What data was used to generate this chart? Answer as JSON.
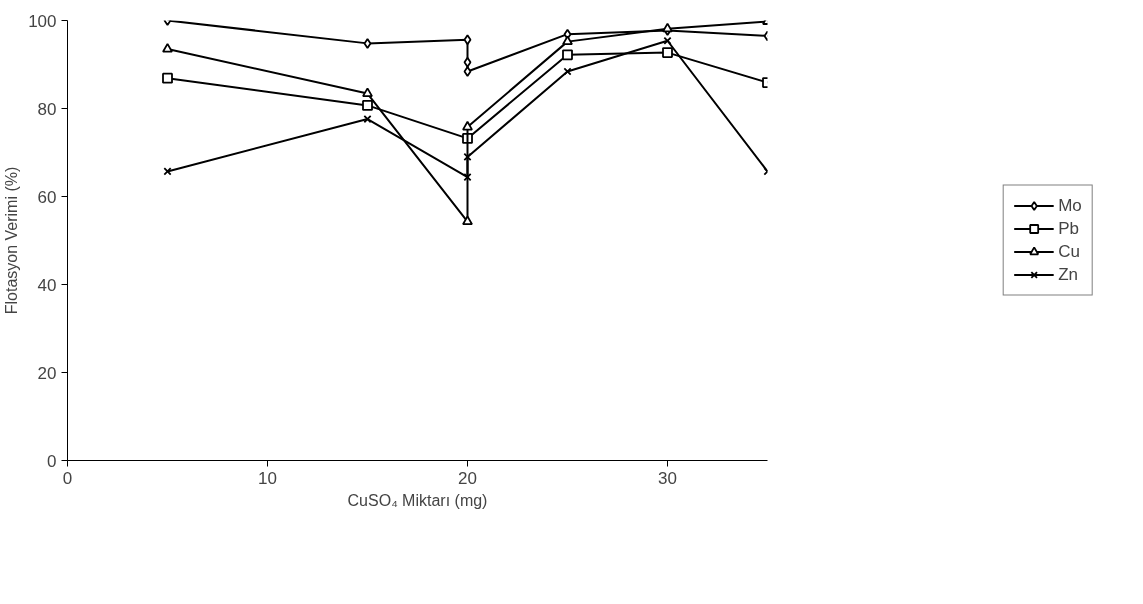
{
  "chart_data": {
    "type": "line",
    "xlabel": "CuSO₄ Miktarı (mg)",
    "ylabel": "Flotasyon Verimi (%)",
    "xlim": [
      0,
      35
    ],
    "xticks": [
      0,
      10,
      20,
      30
    ],
    "ylim": [
      0,
      100
    ],
    "yticks": [
      0,
      20,
      40,
      60,
      80,
      100
    ],
    "grid": false,
    "legend": "right",
    "line_style": "solid",
    "series": [
      {
        "name": "Mo",
        "color": "#000000",
        "marker": "diamond",
        "x": [
          5,
          15,
          20,
          20,
          20,
          25,
          30,
          35
        ],
        "values": [
          100,
          94.8,
          95.6,
          90.5,
          88.4,
          96.9,
          97.7,
          96.5
        ]
      },
      {
        "name": "Pb",
        "color": "#000000",
        "marker": "square",
        "x": [
          5,
          15,
          20,
          25,
          30,
          35
        ],
        "values": [
          86.9,
          80.7,
          73.2,
          92.2,
          92.7,
          85.9
        ]
      },
      {
        "name": "Cu",
        "color": "#000000",
        "marker": "triangle",
        "x": [
          5,
          15,
          20,
          20,
          25,
          30,
          35
        ],
        "values": [
          93.5,
          83.4,
          54.3,
          75.8,
          95.2,
          98.1,
          99.8
        ]
      },
      {
        "name": "Zn",
        "color": "#000000",
        "marker": "cross",
        "x": [
          5,
          15,
          20,
          20,
          25,
          30,
          35
        ],
        "values": [
          65.7,
          77.6,
          64.4,
          69,
          88.4,
          95.4,
          65.7
        ]
      }
    ]
  }
}
